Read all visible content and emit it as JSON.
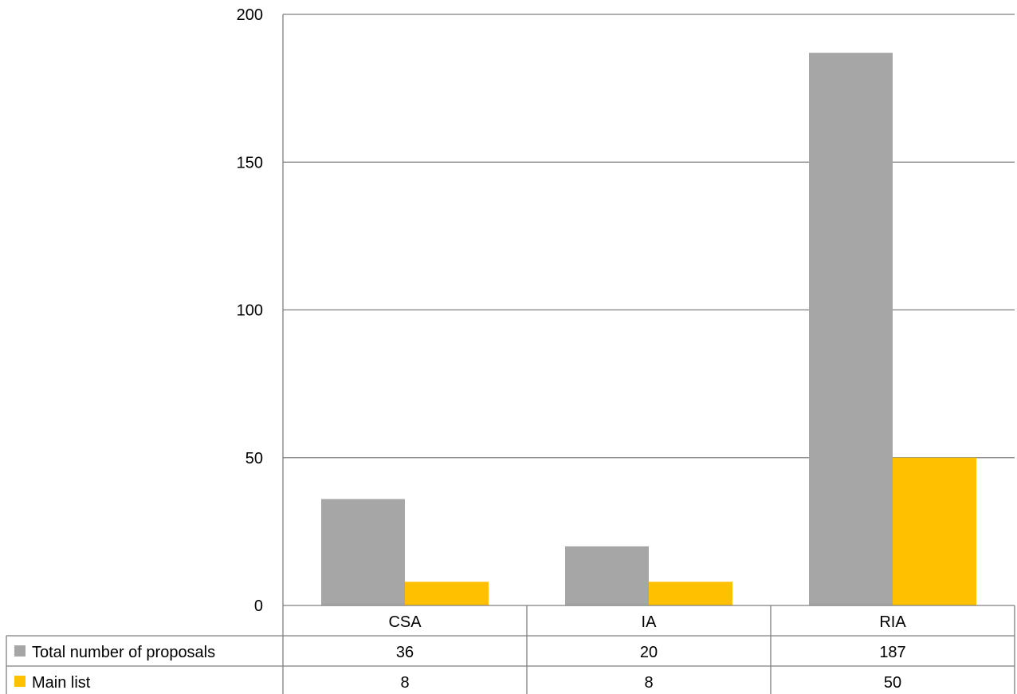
{
  "chart_data": {
    "type": "bar",
    "categories": [
      "CSA",
      "IA",
      "RIA"
    ],
    "series": [
      {
        "name": "Total number of proposals",
        "values": [
          36,
          20,
          187
        ],
        "color": "#a6a6a6"
      },
      {
        "name": "Main list",
        "values": [
          8,
          8,
          50
        ],
        "color": "#ffc000"
      }
    ],
    "ylim": [
      0,
      200
    ],
    "yticks": [
      0,
      50,
      100,
      150,
      200
    ],
    "grid": true,
    "gridline_color": "#7f7f7f",
    "data_table": true,
    "title": "",
    "xlabel": "",
    "ylabel": ""
  }
}
